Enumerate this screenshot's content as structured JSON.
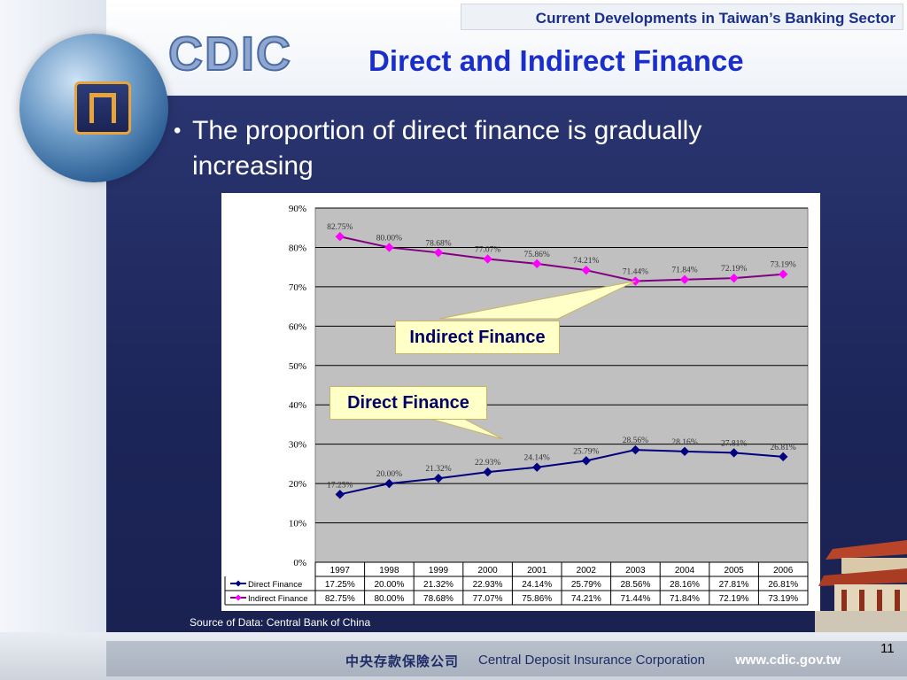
{
  "header": {
    "banner": "Current Developments in Taiwan’s Banking Sector",
    "logo_text": "CDIC",
    "title": "Direct and Indirect Finance"
  },
  "body": {
    "bullet": "The proportion of direct finance is gradually increasing"
  },
  "callouts": {
    "indirect": "Indirect Finance",
    "direct": "Direct Finance"
  },
  "source": "Source of Data: Central Bank of China",
  "footer": {
    "page_number": "11",
    "chinese_name": "中央存款保險公司",
    "org_name": "Central Deposit Insurance Corporation",
    "url": "www.cdic.gov.tw"
  },
  "colors": {
    "direct": "#000080",
    "indirect": "#800080",
    "indirect_marker": "#ff00ff",
    "plot_bg": "#c0c0c0"
  },
  "chart_data": {
    "type": "line",
    "categories": [
      "1997",
      "1998",
      "1999",
      "2000",
      "2001",
      "2002",
      "2003",
      "2004",
      "2005",
      "2006"
    ],
    "ylim": [
      0,
      90
    ],
    "yticks": [
      "0%",
      "10%",
      "20%",
      "30%",
      "40%",
      "50%",
      "60%",
      "70%",
      "80%",
      "90%"
    ],
    "grid": true,
    "legend_placement": "data-table-bottom",
    "series": [
      {
        "name": "Direct Finance",
        "values": [
          17.25,
          20.0,
          21.32,
          22.93,
          24.14,
          25.79,
          28.56,
          28.16,
          27.81,
          26.81
        ],
        "labels": [
          "17.25%",
          "20.00%",
          "21.32%",
          "22.93%",
          "24.14%",
          "25.79%",
          "28.56%",
          "28.16%",
          "27.81%",
          "26.81%"
        ]
      },
      {
        "name": "Indirect Finance",
        "values": [
          82.75,
          80.0,
          78.68,
          77.07,
          75.86,
          74.21,
          71.44,
          71.84,
          72.19,
          73.19
        ],
        "labels": [
          "82.75%",
          "80.00%",
          "78.68%",
          "77.07%",
          "75.86%",
          "74.21%",
          "71.44%",
          "71.84%",
          "72.19%",
          "73.19%"
        ]
      }
    ]
  }
}
